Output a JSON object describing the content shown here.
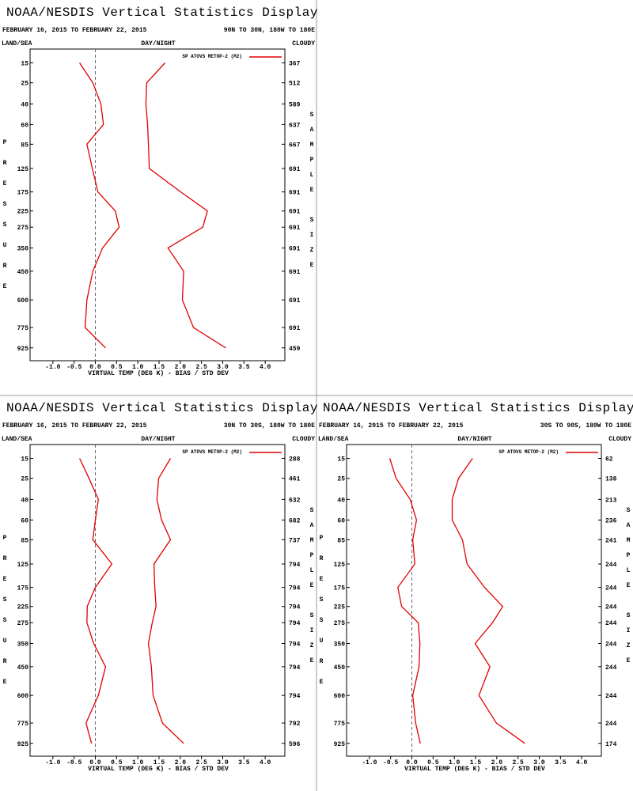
{
  "chart_data": [
    {
      "type": "line",
      "title": "NOAA/NESDIS Vertical Statistics Display",
      "date_range": "FEBRUARY 16, 2015 TO FEBRUARY 22, 2015",
      "region": "90N TO 30N, 180W TO 180E",
      "land_sea": "LAND/SEA",
      "day_night": "DAY/NIGHT",
      "cloudy": "CLOUDY",
      "ylabel": "PRESSURE",
      "y2label": "SAMPLE SIZE",
      "xlabel": "VIRTUAL TEMP (DEG K) - BIAS / STD DEV",
      "xlim": [
        -1.5,
        4.5
      ],
      "xticks": [
        {
          "value": -1,
          "label": "-1.0"
        },
        -0.5,
        {
          "value": 0,
          "label": "0.0"
        },
        0.5,
        {
          "value": 1,
          "label": "1.0"
        },
        1.5,
        {
          "value": 2,
          "label": "2.0"
        },
        2.5,
        {
          "value": 3,
          "label": "3.0"
        },
        3.5,
        {
          "value": 4,
          "label": "4.0"
        }
      ],
      "ylim": [
        10,
        1030
      ],
      "yscale": "power",
      "yticks": [
        15,
        25,
        40,
        60,
        85,
        125,
        175,
        225,
        275,
        350,
        450,
        600,
        775,
        925
      ],
      "sample_size": [
        367,
        512,
        589,
        637,
        667,
        691,
        691,
        691,
        691,
        691,
        691,
        691,
        691,
        459
      ],
      "series": [
        {
          "name": "SP ATOVS METOP-2 (M2)",
          "color": "#e00000",
          "values": [
            -0.37,
            -0.06,
            0.13,
            0.19,
            -0.2,
            -0.07,
            0.06,
            0.47,
            0.56,
            0.17,
            -0.06,
            -0.2,
            -0.24,
            0.24
          ],
          "std_dev": [
            1.64,
            1.21,
            1.19,
            1.23,
            1.25,
            1.27,
            2.01,
            2.64,
            2.53,
            1.71,
            2.08,
            2.05,
            2.31,
            3.07
          ]
        }
      ]
    },
    {
      "type": "line",
      "title": "NOAA/NESDIS Vertical Statistics Display",
      "date_range": "FEBRUARY 16, 2015 TO FEBRUARY 22, 2015",
      "region": "30N TO 30S, 180W TO 180E",
      "land_sea": "LAND/SEA",
      "day_night": "DAY/NIGHT",
      "cloudy": "CLOUDY",
      "ylabel": "PRESSURE",
      "y2label": "SAMPLE SIZE",
      "xlabel": "VIRTUAL TEMP (DEG K) - BIAS / STD DEV",
      "xlim": [
        -1.5,
        4.5
      ],
      "xticks": [
        {
          "value": -1,
          "label": "-1.0"
        },
        -0.5,
        {
          "value": 0,
          "label": "0.0"
        },
        0.5,
        {
          "value": 1,
          "label": "1.0"
        },
        1.5,
        {
          "value": 2,
          "label": "2.0"
        },
        2.5,
        {
          "value": 3,
          "label": "3.0"
        },
        3.5,
        {
          "value": 4,
          "label": "4.0"
        }
      ],
      "ylim": [
        10,
        1030
      ],
      "yscale": "power",
      "yticks": [
        15,
        25,
        40,
        60,
        85,
        125,
        175,
        225,
        275,
        350,
        450,
        600,
        775,
        925
      ],
      "sample_size": [
        288,
        461,
        632,
        682,
        737,
        794,
        794,
        794,
        794,
        794,
        794,
        794,
        792,
        596
      ],
      "series": [
        {
          "name": "SP ATOVS METOP-2 (M2)",
          "color": "#e00000",
          "values": [
            -0.37,
            -0.15,
            0.07,
            0,
            -0.06,
            0.39,
            0,
            -0.19,
            -0.2,
            -0.04,
            0.24,
            0.07,
            -0.22,
            -0.09
          ],
          "std_dev": [
            1.77,
            1.49,
            1.45,
            1.56,
            1.77,
            1.38,
            1.4,
            1.43,
            1.34,
            1.25,
            1.32,
            1.36,
            1.58,
            2.08
          ]
        }
      ]
    },
    {
      "type": "line",
      "title": "NOAA/NESDIS Vertical Statistics Display",
      "date_range": "FEBRUARY 16, 2015 TO FEBRUARY 22, 2015",
      "region": "30S TO 90S, 180W TO 180E",
      "land_sea": "LAND/SEA",
      "day_night": "DAY/NIGHT",
      "cloudy": "CLOUDY",
      "ylabel": "PRESSURE",
      "y2label": "SAMPLE SIZE",
      "xlabel": "VIRTUAL TEMP (DEG K) - BIAS / STD DEV",
      "xlim": [
        -1.5,
        4.5
      ],
      "xticks": [
        {
          "value": -1,
          "label": "-1.0"
        },
        -0.5,
        {
          "value": 0,
          "label": "0.0"
        },
        0.5,
        {
          "value": 1,
          "label": "1.0"
        },
        1.5,
        {
          "value": 2,
          "label": "2.0"
        },
        2.5,
        {
          "value": 3,
          "label": "3.0"
        },
        3.5,
        {
          "value": 4,
          "label": "4.0"
        }
      ],
      "ylim": [
        10,
        1030
      ],
      "yscale": "power",
      "yticks": [
        15,
        25,
        40,
        60,
        85,
        125,
        175,
        225,
        275,
        350,
        450,
        600,
        775,
        925
      ],
      "sample_size": [
        62,
        138,
        213,
        236,
        241,
        244,
        244,
        244,
        244,
        244,
        244,
        244,
        244,
        174
      ],
      "series": [
        {
          "name": "SP ATOVS METOP-2 (M2)",
          "color": "#e00000",
          "values": [
            -0.52,
            -0.37,
            -0.04,
            0.11,
            0.02,
            0.07,
            -0.33,
            -0.24,
            0.15,
            0.19,
            0.17,
            0.02,
            0.09,
            0.2
          ],
          "std_dev": [
            1.43,
            1.1,
            0.95,
            0.95,
            1.19,
            1.3,
            1.71,
            2.14,
            1.9,
            1.49,
            1.84,
            1.58,
            1.99,
            2.66
          ]
        }
      ]
    }
  ]
}
